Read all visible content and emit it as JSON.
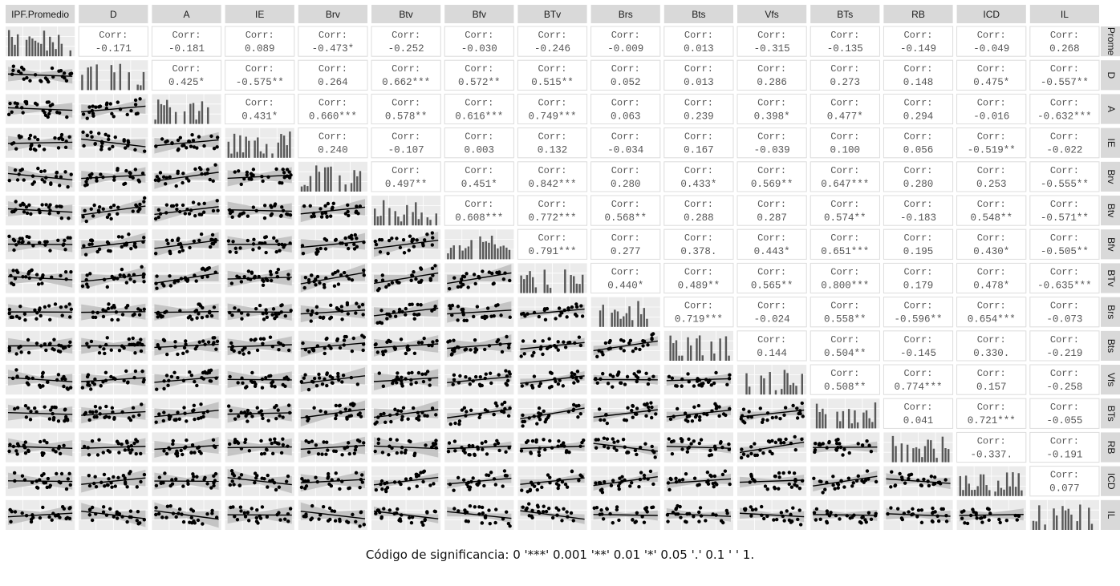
{
  "chart_data": {
    "type": "scatter",
    "variables": [
      "IPF.Promedio",
      "D",
      "A",
      "IE",
      "Brv",
      "Btv",
      "Bfv",
      "BTv",
      "Brs",
      "Bts",
      "Vfs",
      "BTs",
      "RB",
      "ICD",
      "IL"
    ],
    "row_strip_labels": [
      "Prome",
      "D",
      "A",
      "IE",
      "Brv",
      "Btv",
      "Bfv",
      "BTv",
      "Brs",
      "Bts",
      "Vfs",
      "BTs",
      "RB",
      "ICD",
      "IL"
    ],
    "corr_label": "Corr:",
    "upper_corr": [
      [
        "-0.171",
        "-0.181",
        "0.089",
        "-0.473*",
        "-0.252",
        "-0.030",
        "-0.246",
        "-0.009",
        "0.013",
        "-0.315",
        "-0.135",
        "-0.149",
        "-0.049",
        "0.268"
      ],
      [
        "0.425*",
        "-0.575**",
        "0.264",
        "0.662***",
        "0.572**",
        "0.515**",
        "0.052",
        "0.013",
        "0.286",
        "0.273",
        "0.148",
        "0.475*",
        "-0.557**"
      ],
      [
        "0.431*",
        "0.660***",
        "0.578**",
        "0.616***",
        "0.749***",
        "0.063",
        "0.239",
        "0.398*",
        "0.477*",
        "0.294",
        "-0.016",
        "-0.632***"
      ],
      [
        "0.240",
        "-0.107",
        "0.003",
        "0.132",
        "-0.034",
        "0.167",
        "-0.039",
        "0.100",
        "0.056",
        "-0.519**",
        "-0.022"
      ],
      [
        "0.497**",
        "0.451*",
        "0.842***",
        "0.280",
        "0.433*",
        "0.569**",
        "0.647***",
        "0.280",
        "0.253",
        "-0.555**"
      ],
      [
        "0.608***",
        "0.772***",
        "0.568**",
        "0.288",
        "0.287",
        "0.574**",
        "-0.183",
        "0.548**",
        "-0.571**"
      ],
      [
        "0.791***",
        "0.277",
        "0.378.",
        "0.443*",
        "0.651***",
        "0.195",
        "0.430*",
        "-0.505**"
      ],
      [
        "0.440*",
        "0.489**",
        "0.565**",
        "0.800***",
        "0.179",
        "0.478*",
        "-0.635***"
      ],
      [
        "0.719***",
        "-0.024",
        "0.558**",
        "-0.596**",
        "0.654***",
        "-0.073"
      ],
      [
        "0.144",
        "0.504**",
        "-0.145",
        "0.330.",
        "-0.219"
      ],
      [
        "0.508**",
        "0.774***",
        "0.157",
        "-0.258"
      ],
      [
        "0.041",
        "0.721***",
        "-0.055"
      ],
      [
        "-0.337.",
        "-0.191"
      ],
      [
        "0.077"
      ]
    ],
    "diagonal": "histogram",
    "lower": "scatter with linear fit and confidence band",
    "grid": true
  },
  "caption": "Código de significancia: 0 '***' 0.001 '**' 0.01 '*' 0.05 '.' 0.1 ' ' 1.",
  "colors": {
    "strip_bg": "#d9d9d9",
    "panel_bg": "#ebebeb",
    "grid": "#ffffff",
    "point": "#000000",
    "band": "#bdbdbd",
    "bar": "#595959",
    "corr_text": "#555555",
    "corr_border": "#dcdcdc"
  }
}
